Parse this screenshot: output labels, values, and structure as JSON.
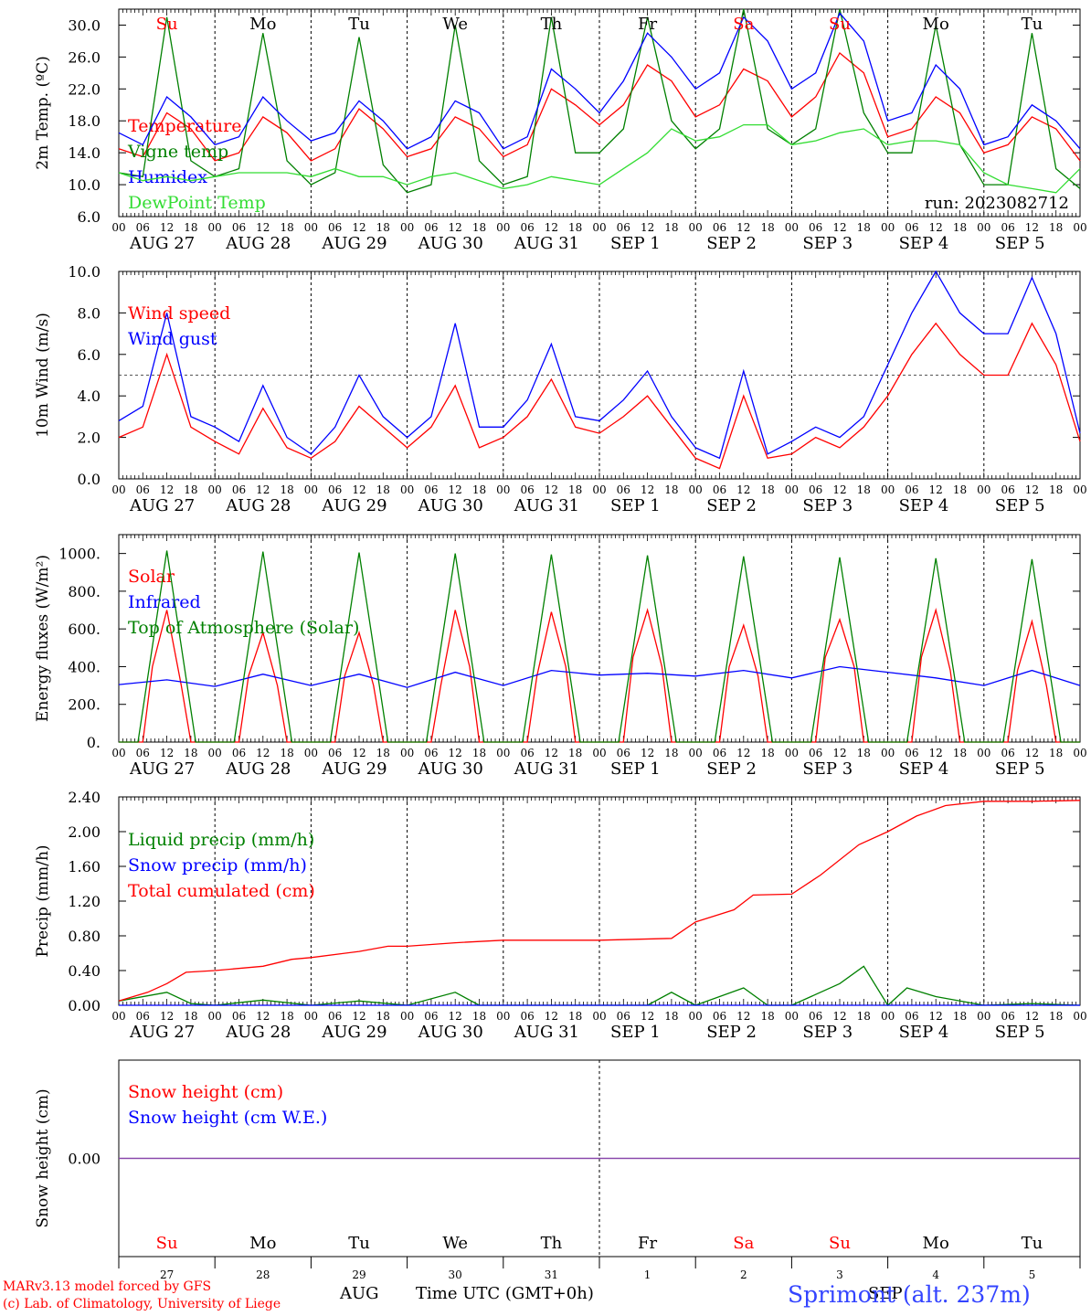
{
  "meta": {
    "run": "run: 2023082712",
    "credit_1": "MARv3.13 model forced by GFS",
    "credit_2": "(c) Lab. of Climatology, University of Liege",
    "time_label": "Time UTC (GMT+0h)",
    "month_left": "AUG",
    "month_right": "SEP",
    "station": "Sprimont (alt. 237m)"
  },
  "colors": {
    "red": "#ff0000",
    "dark_green": "#008000",
    "blue": "#0000ff",
    "light_green": "#33dd33",
    "purple": "#8844aa",
    "station_blue": "#3344ff"
  },
  "days": [
    {
      "dow": "Su",
      "date": "AUG 27",
      "num": "27",
      "weekend": true
    },
    {
      "dow": "Mo",
      "date": "AUG 28",
      "num": "28",
      "weekend": false
    },
    {
      "dow": "Tu",
      "date": "AUG 29",
      "num": "29",
      "weekend": false
    },
    {
      "dow": "We",
      "date": "AUG 30",
      "num": "30",
      "weekend": false
    },
    {
      "dow": "Th",
      "date": "AUG 31",
      "num": "31",
      "weekend": false
    },
    {
      "dow": "Fr",
      "date": "SEP  1",
      "num": "1",
      "weekend": false
    },
    {
      "dow": "Sa",
      "date": "SEP  2",
      "num": "2",
      "weekend": true
    },
    {
      "dow": "Su",
      "date": "SEP  3",
      "num": "3",
      "weekend": true
    },
    {
      "dow": "Mo",
      "date": "SEP  4",
      "num": "4",
      "weekend": false
    },
    {
      "dow": "Tu",
      "date": "SEP  5",
      "num": "5",
      "weekend": false
    }
  ],
  "hour_ticks": [
    "00",
    "06",
    "12",
    "18"
  ],
  "chart_data": [
    {
      "type": "line",
      "ylabel": "2m Temp. (ºC)",
      "ylim": [
        6,
        32
      ],
      "yticks": [
        "6.0",
        "10.0",
        "14.0",
        "18.0",
        "22.0",
        "26.0",
        "30.0"
      ],
      "ytick_values": [
        6,
        10,
        14,
        18,
        22,
        26,
        30
      ],
      "x_unit": "days since Aug 27 00 UTC",
      "series": [
        {
          "name": "Temperature",
          "color": "#ff0000",
          "x": [
            0,
            0.25,
            0.5,
            0.75,
            1,
            1.25,
            1.5,
            1.75,
            2,
            2.25,
            2.5,
            2.75,
            3,
            3.25,
            3.5,
            3.75,
            4,
            4.25,
            4.5,
            4.75,
            5,
            5.25,
            5.5,
            5.75,
            6,
            6.25,
            6.5,
            6.75,
            7,
            7.25,
            7.5,
            7.75,
            8,
            8.25,
            8.5,
            8.75,
            9,
            9.25,
            9.5,
            9.75,
            10
          ],
          "values": [
            14.5,
            13.5,
            19,
            17,
            13,
            14,
            18.5,
            16.5,
            13,
            14.5,
            19.5,
            17,
            13.5,
            14.5,
            18.5,
            17,
            13.5,
            15,
            22,
            20,
            17.5,
            20,
            25,
            23,
            18.5,
            20,
            24.5,
            23,
            18.5,
            21,
            26.5,
            24,
            16,
            17,
            21,
            19,
            14,
            15,
            18.5,
            17,
            13
          ]
        },
        {
          "name": "Vigne temp",
          "color": "#008000",
          "x": [
            0,
            0.25,
            0.5,
            0.75,
            1,
            1.25,
            1.5,
            1.75,
            2,
            2.25,
            2.5,
            2.75,
            3,
            3.25,
            3.5,
            3.75,
            4,
            4.25,
            4.5,
            4.75,
            5,
            5.25,
            5.5,
            5.75,
            6,
            6.25,
            6.5,
            6.75,
            7,
            7.25,
            7.5,
            7.75,
            8,
            8.25,
            8.5,
            8.75,
            9,
            9.25,
            9.5,
            9.75,
            10
          ],
          "values": [
            11.5,
            11,
            31,
            13,
            11,
            12,
            29,
            13,
            10,
            11.5,
            28.5,
            12.5,
            9,
            10,
            30,
            13,
            10,
            11,
            31,
            14,
            14,
            17,
            31,
            18,
            14.5,
            17,
            32,
            17,
            15,
            17,
            32,
            19,
            14,
            14,
            30,
            15,
            10,
            10,
            29,
            12,
            9.5
          ]
        },
        {
          "name": "Humidex",
          "color": "#0000ff",
          "x": [
            0,
            0.25,
            0.5,
            0.75,
            1,
            1.25,
            1.5,
            1.75,
            2,
            2.25,
            2.5,
            2.75,
            3,
            3.25,
            3.5,
            3.75,
            4,
            4.25,
            4.5,
            4.75,
            5,
            5.25,
            5.5,
            5.75,
            6,
            6.25,
            6.5,
            6.75,
            7,
            7.25,
            7.5,
            7.75,
            8,
            8.25,
            8.5,
            8.75,
            9,
            9.25,
            9.5,
            9.75,
            10
          ],
          "values": [
            16.5,
            15,
            21,
            18.5,
            15,
            16,
            21,
            18,
            15.5,
            16.5,
            20.5,
            18,
            14.5,
            16,
            20.5,
            19,
            14.5,
            16,
            24.5,
            22,
            19,
            23,
            29,
            26,
            22,
            24,
            31,
            28,
            22,
            24,
            31.5,
            28,
            18,
            19,
            25,
            22,
            15,
            16,
            20,
            18,
            14.5
          ]
        },
        {
          "name": "DewPoint Temp",
          "color": "#33dd33",
          "x": [
            0,
            0.25,
            0.5,
            0.75,
            1,
            1.25,
            1.5,
            1.75,
            2,
            2.25,
            2.5,
            2.75,
            3,
            3.25,
            3.5,
            3.75,
            4,
            4.25,
            4.5,
            4.75,
            5,
            5.25,
            5.5,
            5.75,
            6,
            6.25,
            6.5,
            6.75,
            7,
            7.25,
            7.5,
            7.75,
            8,
            8.25,
            8.5,
            8.75,
            9,
            9.25,
            9.5,
            9.75,
            10
          ],
          "values": [
            11.5,
            10.5,
            11,
            10.5,
            11,
            11.5,
            11.5,
            11.5,
            11,
            12,
            11,
            11,
            10,
            11,
            11.5,
            10.5,
            9.5,
            10,
            11,
            10.5,
            10,
            12,
            14,
            17,
            15.5,
            16,
            17.5,
            17.5,
            15,
            15.5,
            16.5,
            17,
            15,
            15.5,
            15.5,
            15,
            11.5,
            10,
            9.5,
            9,
            12
          ]
        }
      ]
    },
    {
      "type": "line",
      "ylabel": "10m Wind (m/s)",
      "ylim": [
        0,
        10
      ],
      "yticks": [
        "0.0",
        "2.0",
        "4.0",
        "6.0",
        "8.0",
        "10.0"
      ],
      "ytick_values": [
        0,
        2,
        4,
        6,
        8,
        10
      ],
      "ref_line": 5,
      "x_unit": "days since Aug 27 00 UTC",
      "series": [
        {
          "name": "Wind speed",
          "color": "#ff0000",
          "x": [
            0,
            0.25,
            0.5,
            0.75,
            1,
            1.25,
            1.5,
            1.75,
            2,
            2.25,
            2.5,
            2.75,
            3,
            3.25,
            3.5,
            3.75,
            4,
            4.25,
            4.5,
            4.75,
            5,
            5.25,
            5.5,
            5.75,
            6,
            6.25,
            6.5,
            6.75,
            7,
            7.25,
            7.5,
            7.75,
            8,
            8.25,
            8.5,
            8.75,
            9,
            9.25,
            9.5,
            9.75,
            10
          ],
          "values": [
            2,
            2.5,
            6,
            2.5,
            1.8,
            1.2,
            3.4,
            1.5,
            1,
            1.8,
            3.5,
            2.5,
            1.5,
            2.5,
            4.5,
            1.5,
            2,
            3,
            4.8,
            2.5,
            2.2,
            3,
            4,
            2.5,
            1,
            0.5,
            4,
            1,
            1.2,
            2,
            1.5,
            2.5,
            4,
            6,
            7.5,
            6,
            5,
            5,
            7.5,
            5.5,
            1.8
          ]
        },
        {
          "name": "Wind gust",
          "color": "#0000ff",
          "x": [
            0,
            0.25,
            0.5,
            0.75,
            1,
            1.25,
            1.5,
            1.75,
            2,
            2.25,
            2.5,
            2.75,
            3,
            3.25,
            3.5,
            3.75,
            4,
            4.25,
            4.5,
            4.75,
            5,
            5.25,
            5.5,
            5.75,
            6,
            6.25,
            6.5,
            6.75,
            7,
            7.25,
            7.5,
            7.75,
            8,
            8.25,
            8.5,
            8.75,
            9,
            9.25,
            9.5,
            9.75,
            10
          ],
          "values": [
            2.8,
            3.5,
            8,
            3,
            2.5,
            1.8,
            4.5,
            2,
            1.2,
            2.5,
            5,
            3,
            2,
            3,
            7.5,
            2.5,
            2.5,
            3.8,
            6.5,
            3,
            2.8,
            3.8,
            5.2,
            3,
            1.5,
            1,
            5.2,
            1.2,
            1.8,
            2.5,
            2,
            3,
            5.5,
            8,
            10,
            8,
            7,
            7,
            9.7,
            7,
            2.2
          ]
        }
      ]
    },
    {
      "type": "line",
      "ylabel": "Energy fluxes (W/m²)",
      "ylim": [
        0,
        1100
      ],
      "yticks": [
        "0.",
        "200.",
        "400.",
        "600.",
        "800.",
        "1000."
      ],
      "ytick_values": [
        0,
        200,
        400,
        600,
        800,
        1000
      ],
      "x_unit": "days since Aug 27 00 UTC",
      "series": [
        {
          "name": "Solar",
          "color": "#ff0000",
          "x": [
            0,
            0.25,
            0.35,
            0.5,
            0.65,
            0.75,
            1,
            1.25,
            1.35,
            1.5,
            1.65,
            1.75,
            2,
            2.25,
            2.35,
            2.5,
            2.65,
            2.75,
            3,
            3.25,
            3.35,
            3.5,
            3.65,
            3.75,
            4,
            4.25,
            4.35,
            4.5,
            4.65,
            4.75,
            5,
            5.25,
            5.35,
            5.5,
            5.65,
            5.75,
            6,
            6.25,
            6.35,
            6.5,
            6.65,
            6.75,
            7,
            7.25,
            7.35,
            7.5,
            7.65,
            7.75,
            8,
            8.25,
            8.35,
            8.5,
            8.65,
            8.75,
            9,
            9.25,
            9.35,
            9.5,
            9.65,
            9.75,
            10
          ],
          "values": [
            0,
            0,
            400,
            700,
            300,
            0,
            0,
            0,
            350,
            580,
            300,
            0,
            0,
            0,
            350,
            580,
            300,
            0,
            0,
            0,
            300,
            700,
            400,
            0,
            0,
            0,
            350,
            690,
            400,
            0,
            0,
            0,
            450,
            700,
            400,
            0,
            0,
            0,
            400,
            620,
            350,
            0,
            0,
            0,
            450,
            650,
            400,
            0,
            0,
            0,
            450,
            700,
            380,
            0,
            0,
            0,
            380,
            640,
            300,
            0,
            0
          ]
        },
        {
          "name": "Infrared",
          "color": "#0000ff",
          "x": [
            0,
            0.5,
            1,
            1.5,
            2,
            2.5,
            3,
            3.5,
            4,
            4.5,
            5,
            5.5,
            6,
            6.5,
            7,
            7.5,
            8,
            8.5,
            9,
            9.5,
            10
          ],
          "values": [
            305,
            330,
            295,
            360,
            300,
            360,
            290,
            370,
            300,
            380,
            355,
            365,
            350,
            380,
            340,
            400,
            370,
            340,
            300,
            380,
            300
          ]
        },
        {
          "name": "Top of Atmosphere (Solar)",
          "color": "#008000",
          "x": [
            0,
            0.2,
            0.5,
            0.8,
            1,
            1.2,
            1.5,
            1.8,
            2,
            2.2,
            2.5,
            2.8,
            3,
            3.2,
            3.5,
            3.8,
            4,
            4.2,
            4.5,
            4.8,
            5,
            5.2,
            5.5,
            5.8,
            6,
            6.2,
            6.5,
            6.8,
            7,
            7.2,
            7.5,
            7.8,
            8,
            8.2,
            8.5,
            8.8,
            9,
            9.2,
            9.5,
            9.8,
            10
          ],
          "values": [
            0,
            0,
            1015,
            0,
            0,
            0,
            1010,
            0,
            0,
            0,
            1005,
            0,
            0,
            0,
            1000,
            0,
            0,
            0,
            995,
            0,
            0,
            0,
            990,
            0,
            0,
            0,
            985,
            0,
            0,
            0,
            980,
            0,
            0,
            0,
            975,
            0,
            0,
            0,
            970,
            0,
            0
          ]
        }
      ]
    },
    {
      "type": "line",
      "ylabel": "Precip (mm/h)",
      "ylim": [
        0,
        2.4
      ],
      "yticks": [
        "0.00",
        "0.40",
        "0.80",
        "1.20",
        "1.60",
        "2.00",
        "2.40"
      ],
      "ytick_values": [
        0,
        0.4,
        0.8,
        1.2,
        1.6,
        2.0,
        2.4
      ],
      "x_unit": "days since Aug 27 00 UTC",
      "series": [
        {
          "name": "Liquid precip (mm/h)",
          "color": "#008000",
          "x": [
            0,
            0.5,
            0.75,
            1,
            1.5,
            2,
            2.5,
            3,
            3.5,
            3.75,
            4,
            4.5,
            5,
            5.5,
            5.75,
            6,
            6.5,
            6.75,
            7,
            7.5,
            7.75,
            8,
            8.2,
            8.5,
            9,
            9.5,
            10
          ],
          "values": [
            0.05,
            0.15,
            0.02,
            0,
            0.06,
            0,
            0.05,
            0,
            0.15,
            0,
            0,
            0,
            0,
            0,
            0.15,
            0,
            0.2,
            0,
            0,
            0.25,
            0.45,
            0,
            0.2,
            0.1,
            0,
            0.02,
            0
          ]
        },
        {
          "name": "Snow precip (mm/h)",
          "color": "#0000ff",
          "x": [
            0,
            10
          ],
          "values": [
            0,
            0
          ]
        },
        {
          "name": "Total cumulated (cm)",
          "color": "#ff0000",
          "x": [
            0,
            0.3,
            0.5,
            0.7,
            1,
            1.5,
            1.8,
            2,
            2.5,
            2.8,
            3,
            3.5,
            4,
            5,
            5.75,
            6,
            6.4,
            6.6,
            7,
            7.3,
            7.7,
            8,
            8.3,
            8.6,
            9,
            9.5,
            10
          ],
          "values": [
            0.05,
            0.15,
            0.25,
            0.38,
            0.4,
            0.45,
            0.53,
            0.55,
            0.62,
            0.68,
            0.68,
            0.72,
            0.75,
            0.75,
            0.77,
            0.96,
            1.1,
            1.27,
            1.28,
            1.5,
            1.85,
            2.0,
            2.18,
            2.3,
            2.35,
            2.35,
            2.36
          ]
        }
      ]
    },
    {
      "type": "line",
      "ylabel": "Snow height (cm)",
      "ylim": [
        -1,
        1
      ],
      "yticks": [
        "0.00"
      ],
      "ytick_values": [
        0
      ],
      "x_unit": "days since Aug 27 00 UTC",
      "series": [
        {
          "name": "Snow height (cm)",
          "color": "#ff0000",
          "x": [
            0,
            10
          ],
          "values": [
            0,
            0
          ]
        },
        {
          "name": "Snow height (cm W.E.)",
          "color": "#0000ff",
          "x": [
            0,
            10
          ],
          "values": [
            0,
            0
          ]
        }
      ]
    }
  ]
}
